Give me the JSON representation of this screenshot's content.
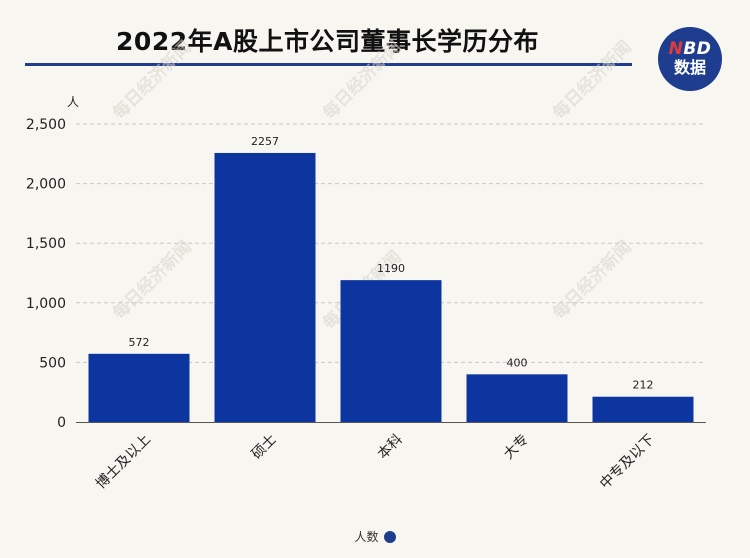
{
  "header": {
    "title": "2022年A股上市公司董事长学历分布"
  },
  "logo": {
    "line1_n": "N",
    "line1_rest": "BD",
    "line2": "数据"
  },
  "watermark": "每日经济新闻",
  "colors": {
    "bar": "#0d35a0",
    "accent": "#1f3d8f",
    "logo_n": "#e03a3a"
  },
  "chart_data": {
    "type": "bar",
    "categories": [
      "博士及以上",
      "硕士",
      "本科",
      "大专",
      "中专及以下"
    ],
    "series": [
      {
        "name": "人数",
        "values": [
          572,
          2257,
          1190,
          400,
          212
        ]
      }
    ],
    "ylabel": "人",
    "ylim": [
      0,
      2500
    ],
    "yticks": [
      0,
      500,
      1000,
      1500,
      2000,
      2500
    ],
    "ytick_labels": [
      "0",
      "500",
      "1,000",
      "1,500",
      "2,000",
      "2,500"
    ],
    "grid": true,
    "legend_position": "bottom-center",
    "data_labels": true
  }
}
